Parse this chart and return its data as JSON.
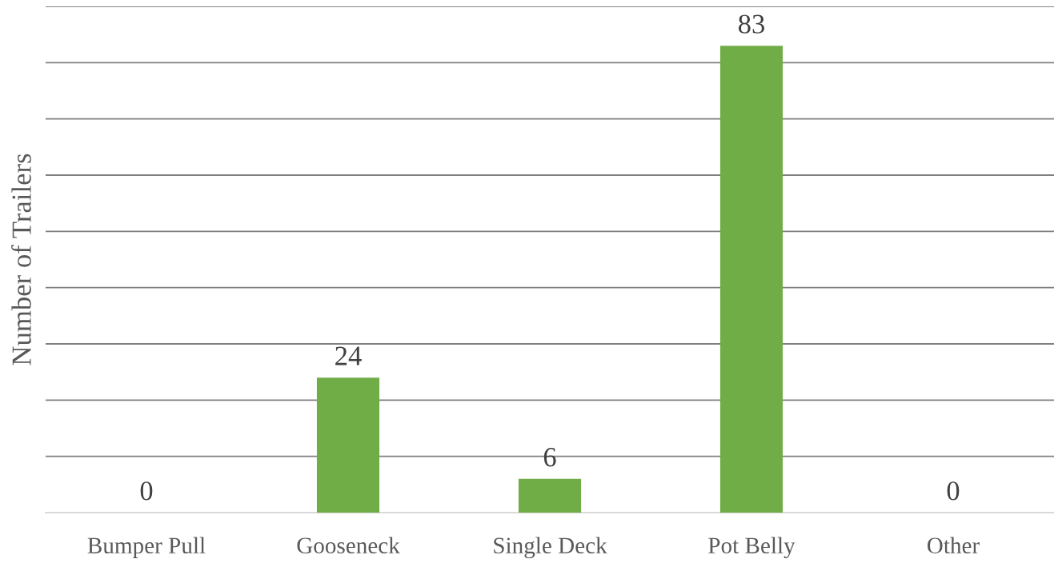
{
  "chart_data": {
    "type": "bar",
    "ylabel": "Number of Trailers",
    "categories": [
      "Bumper Pull",
      "Gooseneck",
      "Single Deck",
      "Pot Belly",
      "Other"
    ],
    "values": [
      0,
      24,
      6,
      83,
      0
    ],
    "color": "#70ad47",
    "ylim": [
      0,
      90
    ],
    "yticks": [
      {
        "value": 0,
        "label": null
      },
      {
        "value": 10,
        "label": null
      },
      {
        "value": 20,
        "label": null
      },
      {
        "value": 30,
        "label": null
      },
      {
        "value": 40,
        "label": null
      },
      {
        "value": 50,
        "label": null
      },
      {
        "value": 60,
        "label": null
      },
      {
        "value": 70,
        "label": null
      },
      {
        "value": 80,
        "label": null
      },
      {
        "value": 90,
        "label": null
      }
    ],
    "grid": "y",
    "tick_labels": "x",
    "data_labels": true,
    "legend": false
  }
}
